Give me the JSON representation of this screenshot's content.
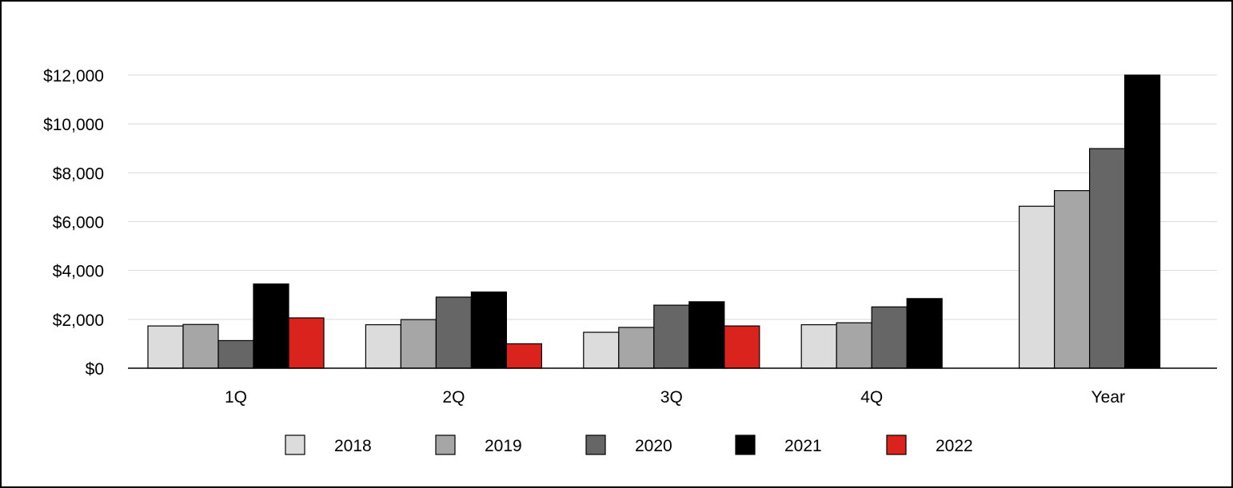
{
  "chart_data": {
    "type": "bar",
    "categories": [
      "1Q",
      "2Q",
      "3Q",
      "4Q",
      "Year"
    ],
    "series": [
      {
        "name": "2018",
        "color": "#dcdcdc",
        "values": [
          1730,
          1780,
          1470,
          1780,
          6630
        ]
      },
      {
        "name": "2019",
        "color": "#a6a6a6",
        "values": [
          1790,
          1990,
          1670,
          1860,
          7270
        ]
      },
      {
        "name": "2020",
        "color": "#666666",
        "values": [
          1130,
          2910,
          2580,
          2510,
          8990
        ]
      },
      {
        "name": "2021",
        "color": "#000000",
        "values": [
          3450,
          3120,
          2720,
          2850,
          12000
        ]
      },
      {
        "name": "2022",
        "color": "#d9231c",
        "values": [
          2060,
          1000,
          1730,
          null,
          null
        ]
      }
    ],
    "ylim": [
      0,
      12000
    ],
    "yticks": [
      0,
      2000,
      4000,
      6000,
      8000,
      10000,
      12000
    ],
    "ytick_labels": [
      "$0",
      "$2,000",
      "$4,000",
      "$6,000",
      "$8,000",
      "$10,000",
      "$12,000"
    ],
    "grid": true,
    "legend_position": "bottom"
  }
}
